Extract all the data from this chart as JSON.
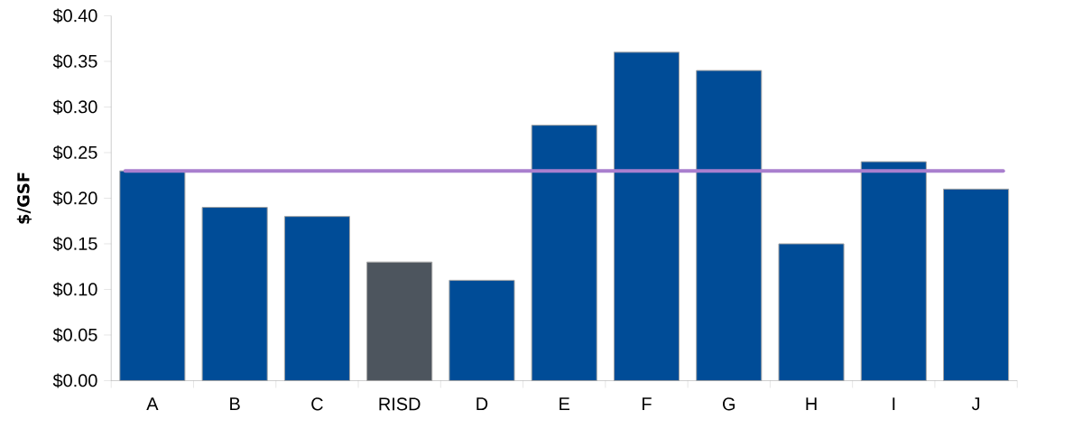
{
  "chart_data": {
    "type": "bar",
    "ylabel": "$/GSF",
    "categories": [
      "A",
      "B",
      "C",
      "RISD",
      "D",
      "E",
      "F",
      "G",
      "H",
      "I",
      "J"
    ],
    "values": [
      0.23,
      0.19,
      0.18,
      0.13,
      0.11,
      0.28,
      0.36,
      0.34,
      0.15,
      0.24,
      0.21
    ],
    "colors": [
      "#004c97",
      "#004c97",
      "#004c97",
      "#4d555e",
      "#004c97",
      "#004c97",
      "#004c97",
      "#004c97",
      "#004c97",
      "#004c97",
      "#004c97"
    ],
    "ylim": [
      0,
      0.4
    ],
    "yticks": [
      {
        "value": 0,
        "label": "$0.00"
      },
      {
        "value": 0.05,
        "label": "$0.05"
      },
      {
        "value": 0.1,
        "label": "$0.10"
      },
      {
        "value": 0.15,
        "label": "$0.15"
      },
      {
        "value": 0.2,
        "label": "$0.20"
      },
      {
        "value": 0.25,
        "label": "$0.25"
      },
      {
        "value": 0.3,
        "label": "$0.30"
      },
      {
        "value": 0.35,
        "label": "$0.35"
      },
      {
        "value": 0.4,
        "label": "$0.40"
      }
    ],
    "ref_lines": [
      {
        "axis": "y",
        "value": 0.23,
        "color": "#a97fce"
      }
    ],
    "grid": false
  }
}
